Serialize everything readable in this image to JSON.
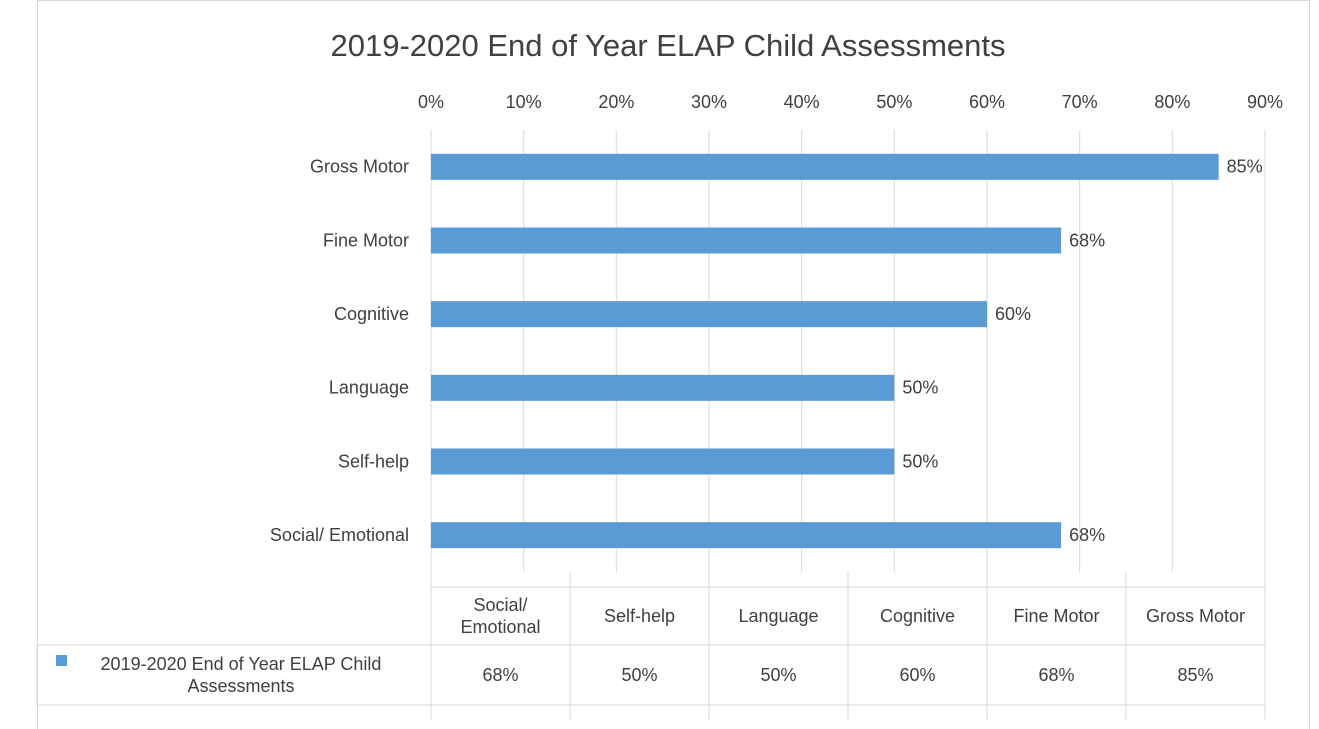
{
  "chart_data": {
    "type": "bar",
    "orientation": "horizontal",
    "title": "2019-2020 End of Year ELAP Child Assessments",
    "categories": [
      "Social/ Emotional",
      "Self-help",
      "Language",
      "Cognitive",
      "Fine Motor",
      "Gross Motor"
    ],
    "series": [
      {
        "name": "2019-2020 End of Year ELAP Child Assessments",
        "color": "#5b9bd5",
        "values": [
          68,
          50,
          50,
          60,
          68,
          85
        ],
        "value_labels": [
          "68%",
          "50%",
          "50%",
          "60%",
          "68%",
          "85%"
        ]
      }
    ],
    "xlim": [
      0,
      90
    ],
    "xticks": [
      {
        "value": 0,
        "label": "0%"
      },
      {
        "value": 10,
        "label": "10%"
      },
      {
        "value": 20,
        "label": "20%"
      },
      {
        "value": 30,
        "label": "30%"
      },
      {
        "value": 40,
        "label": "40%"
      },
      {
        "value": 50,
        "label": "50%"
      },
      {
        "value": 60,
        "label": "60%"
      },
      {
        "value": 70,
        "label": "70%"
      },
      {
        "value": 80,
        "label": "80%"
      },
      {
        "value": 90,
        "label": "90%"
      }
    ],
    "grid": true,
    "data_table": true
  }
}
